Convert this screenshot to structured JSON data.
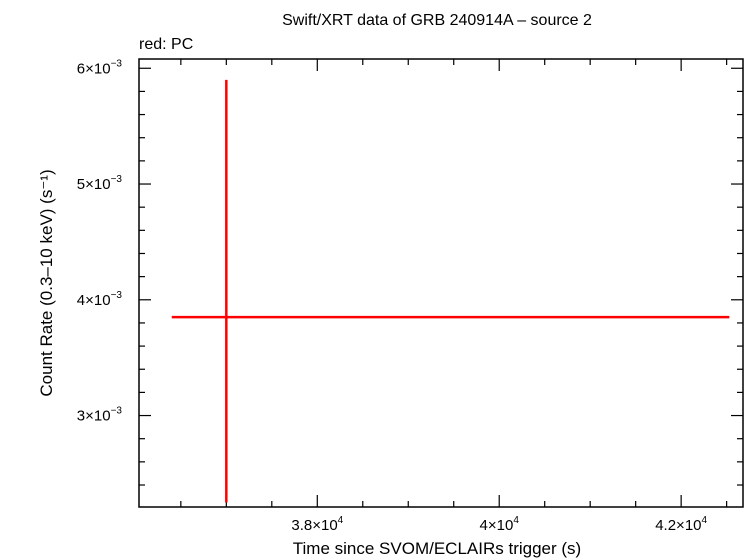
{
  "chart_data": {
    "type": "scatter",
    "title": "Swift/XRT data of GRB 240914A – source 2",
    "subtitle": "red: PC",
    "xlabel": "Time since SVOM/ECLAIRs trigger (s)",
    "ylabel": "Count Rate (0.3–10 keV) (s⁻¹)",
    "xlim": [
      36040,
      42680
    ],
    "ylim": [
      0.00221,
      0.00608
    ],
    "x_ticks": [
      {
        "value": 38000,
        "mantissa": "3.8×10",
        "exp": "4"
      },
      {
        "value": 40000,
        "mantissa": "4×10",
        "exp": "4"
      },
      {
        "value": 42000,
        "mantissa": "4.2×10",
        "exp": "4"
      }
    ],
    "y_ticks": [
      {
        "value": 0.003,
        "mantissa": "3×10",
        "exp": "−3"
      },
      {
        "value": 0.004,
        "mantissa": "4×10",
        "exp": "−3"
      },
      {
        "value": 0.005,
        "mantissa": "5×10",
        "exp": "−3"
      },
      {
        "value": 0.006,
        "mantissa": "6×10",
        "exp": "−3"
      }
    ],
    "grid": false,
    "series": [
      {
        "name": "PC",
        "color": "#ff0000",
        "points": [
          {
            "x": 37000,
            "x_err_minus": 600,
            "x_err_plus": 5530,
            "y": 0.00385,
            "y_err_minus": 0.0016,
            "y_err_plus": 0.00205
          }
        ]
      }
    ]
  }
}
